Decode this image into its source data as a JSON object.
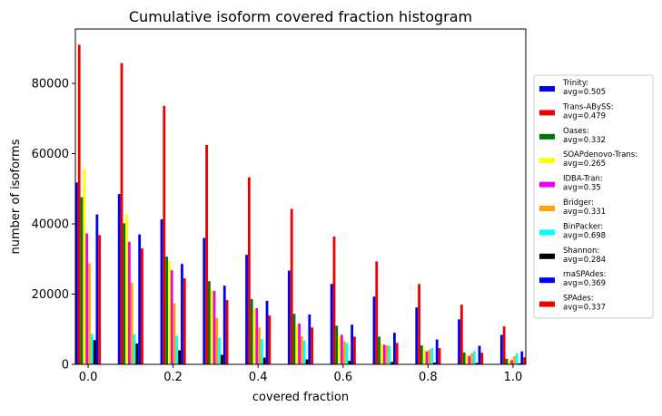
{
  "chart_data": {
    "type": "bar",
    "title": "Cumulative isoform covered fraction histogram",
    "xlabel": "covered fraction",
    "ylabel": "number of isoforms",
    "xlim": [
      -0.03,
      1.03
    ],
    "ylim": [
      0,
      95500
    ],
    "x_ticks": [
      {
        "value": 0.0,
        "label": "0.0"
      },
      {
        "value": 0.2,
        "label": "0.2"
      },
      {
        "value": 0.4,
        "label": "0.4"
      },
      {
        "value": 0.6,
        "label": "0.6"
      },
      {
        "value": 0.8,
        "label": "0.8"
      },
      {
        "value": 1.0,
        "label": "1.0"
      }
    ],
    "y_ticks": [
      {
        "value": 0,
        "label": "0"
      },
      {
        "value": 20000,
        "label": "20000"
      },
      {
        "value": 40000,
        "label": "40000"
      },
      {
        "value": 60000,
        "label": "60000"
      },
      {
        "value": 80000,
        "label": "80000"
      }
    ],
    "grid": false,
    "legend_position": "right",
    "x": [
      0.0,
      0.1,
      0.2,
      0.3,
      0.4,
      0.5,
      0.6,
      0.7,
      0.8,
      0.9,
      1.0
    ],
    "series": [
      {
        "name": "Trinity:",
        "avg": "avg=0.505",
        "color": "#0000ee",
        "values": [
          51800,
          48500,
          41300,
          36000,
          31200,
          26700,
          22900,
          19300,
          16200,
          12800,
          8400
        ]
      },
      {
        "name": "Trans-ABySS:",
        "avg": "avg=0.479",
        "color": "#ee0000",
        "values": [
          91000,
          85800,
          73600,
          62500,
          53300,
          44300,
          36400,
          29300,
          22900,
          17000,
          10800
        ]
      },
      {
        "name": "Oases:",
        "avg": "avg=0.332",
        "color": "#007700",
        "values": [
          47600,
          40200,
          30700,
          23700,
          18600,
          14400,
          11000,
          7900,
          5400,
          3400,
          1600
        ]
      },
      {
        "name": "SOAPdenovo-Trans:",
        "avg": "avg=0.265",
        "color": "#ffff00",
        "values": [
          55700,
          42700,
          29400,
          21200,
          15800,
          11200,
          8200,
          5800,
          4300,
          2800,
          1400
        ]
      },
      {
        "name": "IDBA-Tran:",
        "avg": "avg=0.35",
        "color": "#ee00ee",
        "values": [
          37300,
          34900,
          26800,
          20900,
          16000,
          11600,
          8400,
          5600,
          3700,
          2400,
          1200
        ]
      },
      {
        "name": "Bridger:",
        "avg": "avg=0.331",
        "color": "#ffa500",
        "values": [
          28800,
          23300,
          17400,
          13300,
          10500,
          8000,
          6600,
          5400,
          4200,
          3200,
          2300
        ]
      },
      {
        "name": "BinPacker:",
        "avg": "avg=0.698",
        "color": "#00ffff",
        "values": [
          8700,
          8500,
          8100,
          7600,
          7200,
          6800,
          6100,
          5300,
          4600,
          3800,
          3100
        ]
      },
      {
        "name": "Shannon:",
        "avg": "avg=0.284",
        "color": "#000000",
        "values": [
          6900,
          5900,
          4000,
          2700,
          1900,
          1400,
          1000,
          700,
          500,
          400,
          300
        ]
      },
      {
        "name": "rnaSPAdes:",
        "avg": "avg=0.369",
        "color": "#0000ee",
        "values": [
          42700,
          37000,
          28600,
          22400,
          18100,
          14200,
          11300,
          9000,
          7100,
          5300,
          3700
        ]
      },
      {
        "name": "SPAdes:",
        "avg": "avg=0.337",
        "color": "#ee0000",
        "values": [
          36800,
          33000,
          24500,
          18300,
          13900,
          10500,
          7900,
          6100,
          4600,
          3300,
          2000
        ]
      }
    ]
  }
}
